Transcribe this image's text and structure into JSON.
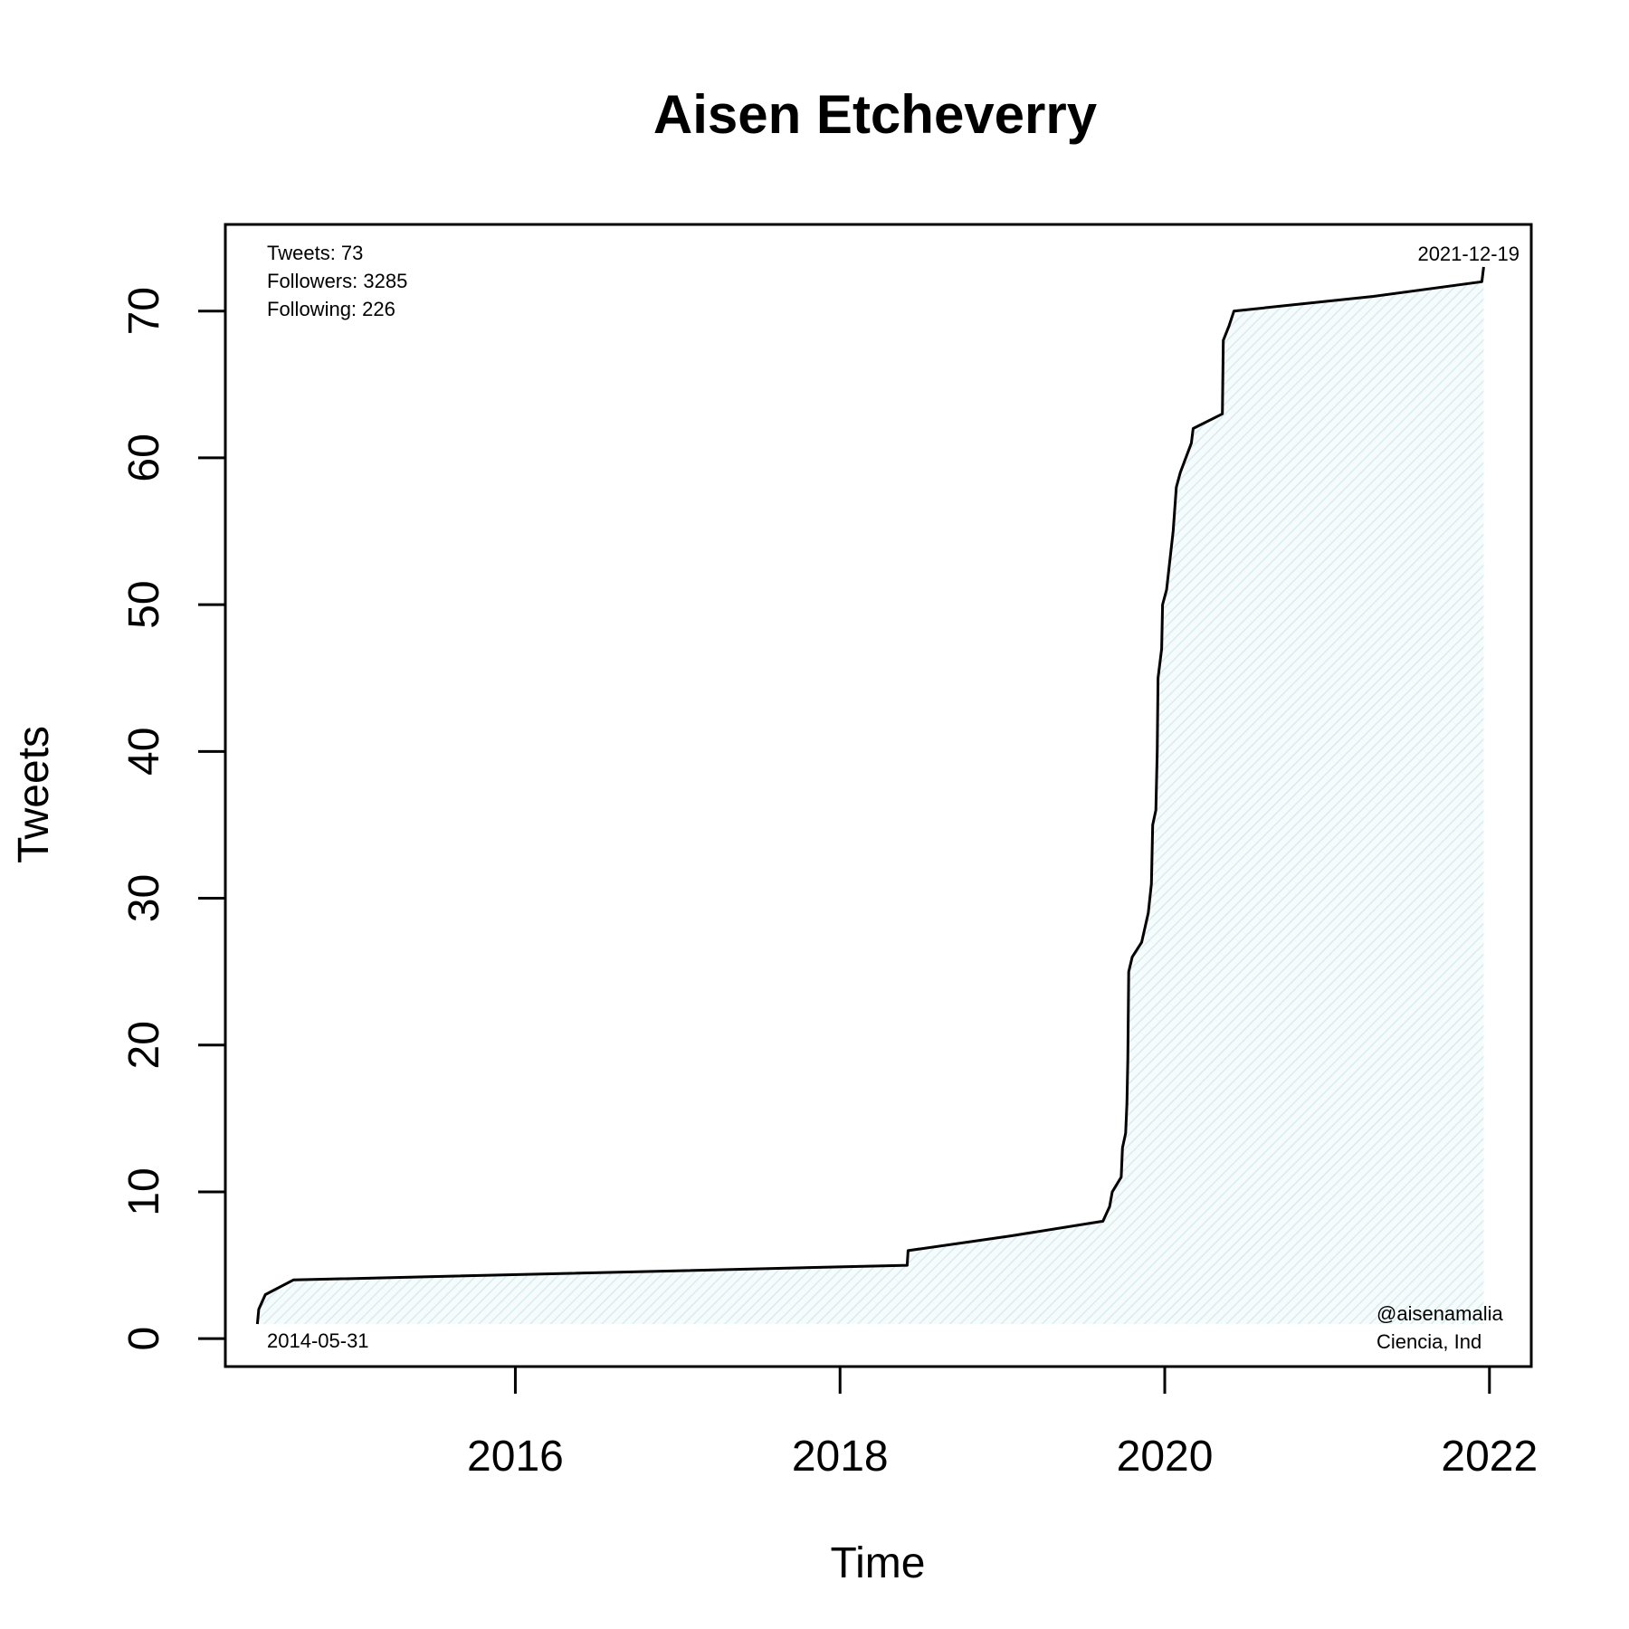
{
  "chart_data": {
    "type": "area",
    "title": "Aisen Etcheverry",
    "xlabel": "Time",
    "ylabel": "Tweets",
    "xlim": [
      "2014-03-20",
      "2022-04-05"
    ],
    "ylim": [
      -1.9,
      75.9
    ],
    "x_ticks": [
      {
        "label": "2016",
        "date": "2016-01-01"
      },
      {
        "label": "2018",
        "date": "2018-01-01"
      },
      {
        "label": "2020",
        "date": "2020-01-01"
      },
      {
        "label": "2022",
        "date": "2022-01-01"
      }
    ],
    "y_ticks": [
      0,
      10,
      20,
      30,
      40,
      50,
      60,
      70
    ],
    "fill_color": "#e4f2f5",
    "line_color": "#000000",
    "series": [
      {
        "points": [
          [
            "2014-05-31",
            1
          ],
          [
            "2014-06-03",
            2
          ],
          [
            "2014-06-18",
            3
          ],
          [
            "2014-08-20",
            4
          ],
          [
            "2018-06-01",
            5
          ],
          [
            "2018-06-03",
            6
          ],
          [
            "2019-01-20",
            7
          ],
          [
            "2019-08-15",
            8
          ],
          [
            "2019-08-30",
            9
          ],
          [
            "2019-09-05",
            10
          ],
          [
            "2019-09-25",
            11
          ],
          [
            "2019-09-28",
            13
          ],
          [
            "2019-10-05",
            14
          ],
          [
            "2019-10-08",
            16
          ],
          [
            "2019-10-10",
            19
          ],
          [
            "2019-10-12",
            25
          ],
          [
            "2019-10-20",
            26
          ],
          [
            "2019-11-10",
            27
          ],
          [
            "2019-11-25",
            29
          ],
          [
            "2019-12-02",
            31
          ],
          [
            "2019-12-05",
            35
          ],
          [
            "2019-12-12",
            36
          ],
          [
            "2019-12-15",
            40
          ],
          [
            "2019-12-17",
            45
          ],
          [
            "2019-12-25",
            47
          ],
          [
            "2019-12-27",
            50
          ],
          [
            "2020-01-05",
            51
          ],
          [
            "2020-01-20",
            55
          ],
          [
            "2020-01-27",
            58
          ],
          [
            "2020-02-05",
            59
          ],
          [
            "2020-03-01",
            61
          ],
          [
            "2020-03-05",
            62
          ],
          [
            "2020-05-10",
            63
          ],
          [
            "2020-05-12",
            68
          ],
          [
            "2020-05-25",
            69
          ],
          [
            "2020-06-05",
            70
          ],
          [
            "2021-04-15",
            71
          ],
          [
            "2021-12-15",
            72
          ],
          [
            "2021-12-19",
            73
          ]
        ]
      }
    ],
    "annotations": {
      "stats": [
        "Tweets: 73",
        "Followers: 3285",
        "Following: 226"
      ],
      "start_date": "2014-05-31",
      "end_date": "2021-12-19",
      "handle": "@aisenamalia",
      "description": "Ciencia, Ind"
    },
    "grid": false,
    "legend": "none"
  }
}
